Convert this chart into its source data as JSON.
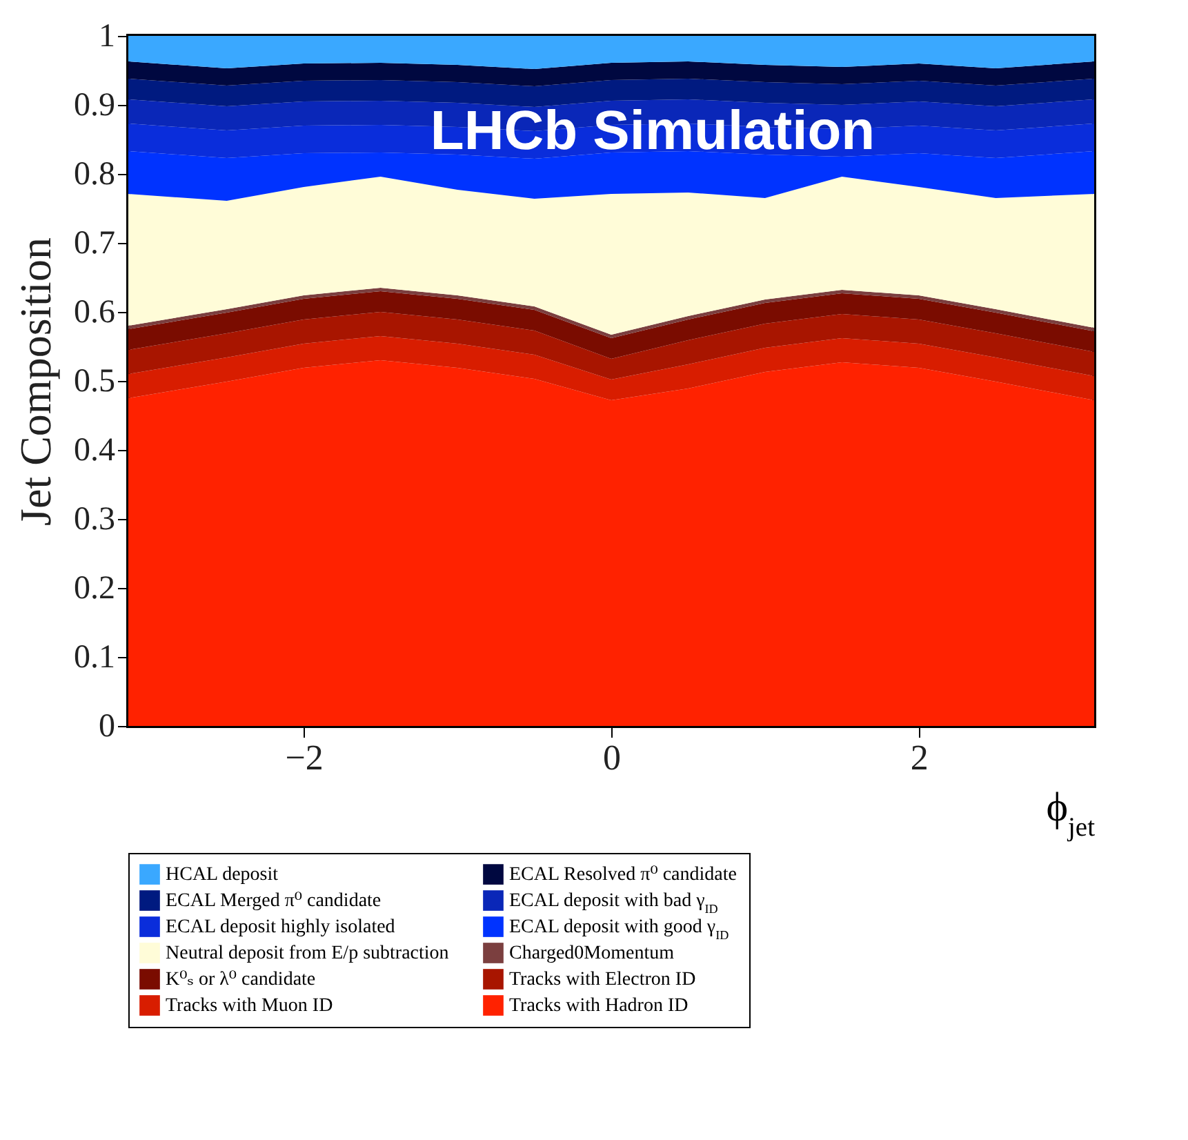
{
  "chart_data": {
    "type": "area",
    "stacked": true,
    "xlabel": "ϕ$_{jet}$",
    "ylabel": "Jet Composition",
    "annotations": [
      "LHCb Simulation"
    ],
    "x": [
      -3.14,
      -2.5,
      -2,
      -1.5,
      -1,
      -0.5,
      0,
      0.5,
      1,
      1.5,
      2,
      2.5,
      3.14
    ],
    "xlim": [
      -3.14,
      3.14
    ],
    "xticks": [
      -2,
      0,
      2
    ],
    "ylim": [
      0,
      1
    ],
    "yticks": [
      0,
      0.1,
      0.2,
      0.3,
      0.4,
      0.5,
      0.6,
      0.7,
      0.8,
      0.9,
      1
    ],
    "grid": false,
    "legend": "bottom",
    "series": [
      {
        "name": "Tracks with Hadron ID",
        "color": "#ff2200",
        "values": [
          0.475,
          0.499,
          0.519,
          0.53,
          0.519,
          0.503,
          0.472,
          0.489,
          0.513,
          0.527,
          0.519,
          0.499,
          0.472
        ]
      },
      {
        "name": "Tracks with Muon ID",
        "color": "#d81d00",
        "values": [
          0.035,
          0.035,
          0.035,
          0.035,
          0.035,
          0.035,
          0.03,
          0.035,
          0.035,
          0.035,
          0.035,
          0.035,
          0.035
        ]
      },
      {
        "name": "Tracks with Electron ID",
        "color": "#a81500",
        "values": [
          0.035,
          0.035,
          0.035,
          0.035,
          0.035,
          0.035,
          0.03,
          0.035,
          0.035,
          0.035,
          0.035,
          0.035,
          0.035
        ]
      },
      {
        "name": "K⁰ₛ or λ⁰ candidate",
        "color": "#7a0c00",
        "values": [
          0.03,
          0.03,
          0.03,
          0.03,
          0.03,
          0.03,
          0.03,
          0.03,
          0.03,
          0.03,
          0.03,
          0.03,
          0.03
        ]
      },
      {
        "name": "Charged0Momentum",
        "color": "#7b3f3f",
        "values": [
          0.005,
          0.005,
          0.005,
          0.005,
          0.005,
          0.005,
          0.005,
          0.005,
          0.005,
          0.005,
          0.005,
          0.005,
          0.005
        ]
      },
      {
        "name": "Neutral deposit from E/p subtraction",
        "color": "#fffcd8",
        "values": [
          0.191,
          0.157,
          0.157,
          0.161,
          0.153,
          0.156,
          0.204,
          0.179,
          0.147,
          0.164,
          0.157,
          0.161,
          0.194
        ]
      },
      {
        "name": "ECAL deposit with good γ$_{ID}$",
        "color": "#0033ff",
        "values": [
          0.062,
          0.062,
          0.049,
          0.035,
          0.051,
          0.058,
          0.06,
          0.06,
          0.063,
          0.029,
          0.049,
          0.058,
          0.062
        ]
      },
      {
        "name": "ECAL deposit highly isolated",
        "color": "#0a2ddb",
        "values": [
          0.04,
          0.04,
          0.04,
          0.04,
          0.04,
          0.04,
          0.04,
          0.04,
          0.04,
          0.04,
          0.04,
          0.04,
          0.04
        ]
      },
      {
        "name": "ECAL deposit with bad γ$_{ID}$",
        "color": "#0a27b8",
        "values": [
          0.035,
          0.035,
          0.035,
          0.035,
          0.035,
          0.035,
          0.035,
          0.035,
          0.035,
          0.035,
          0.035,
          0.035,
          0.035
        ]
      },
      {
        "name": "ECAL Merged π⁰ candidate",
        "color": "#001a80",
        "values": [
          0.03,
          0.03,
          0.03,
          0.03,
          0.03,
          0.03,
          0.03,
          0.03,
          0.03,
          0.03,
          0.03,
          0.03,
          0.03
        ]
      },
      {
        "name": "ECAL Resolved π⁰ candidate",
        "color": "#000840",
        "values": [
          0.025,
          0.025,
          0.025,
          0.025,
          0.025,
          0.025,
          0.025,
          0.025,
          0.025,
          0.025,
          0.025,
          0.025,
          0.025
        ]
      },
      {
        "name": "HCAL deposit",
        "color": "#3aa8ff",
        "values": [
          0.037,
          0.047,
          0.04,
          0.039,
          0.042,
          0.048,
          0.039,
          0.037,
          0.042,
          0.045,
          0.04,
          0.047,
          0.037
        ]
      }
    ]
  }
}
